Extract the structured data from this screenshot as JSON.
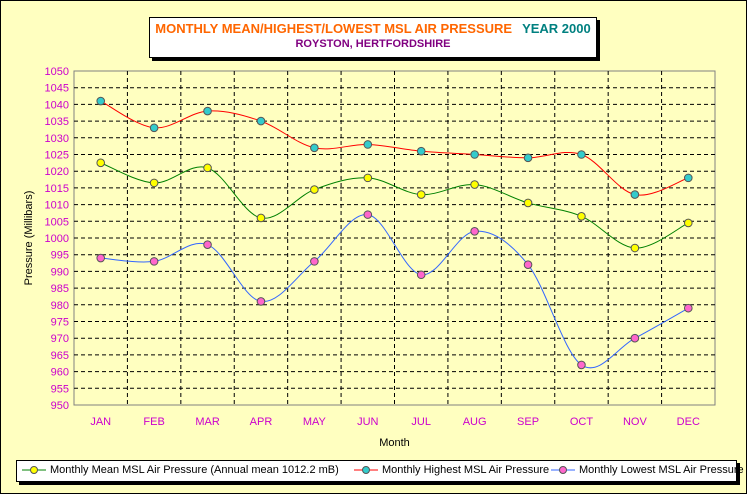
{
  "title": {
    "main": "MONTHLY MEAN/HIGHEST/LOWEST MSL AIR PRESSURE",
    "year": "YEAR 2000",
    "subtitle": "ROYSTON, HERTFORDSHIRE"
  },
  "colors": {
    "background": "#ffffc0",
    "title_main": "#ff6600",
    "title_year": "#008080",
    "subtitle": "#800080",
    "axis_labels": "#cc00cc",
    "mean_line": "#008000",
    "mean_marker": "#ffff00",
    "high_line": "#ff0000",
    "high_marker": "#33cccc",
    "low_line": "#3366ff",
    "low_marker": "#ff66cc"
  },
  "chart_data": {
    "type": "line",
    "xlabel": "Month",
    "ylabel": "Pressure (Millibars)",
    "ylim": [
      950,
      1050
    ],
    "ytick_step": 5,
    "grid": true,
    "legend_position": "bottom",
    "categories": [
      "JAN",
      "FEB",
      "MAR",
      "APR",
      "MAY",
      "JUN",
      "JUL",
      "AUG",
      "SEP",
      "OCT",
      "NOV",
      "DEC"
    ],
    "series": [
      {
        "name": "Monthly Mean MSL Air Pressure (Annual mean 1012.2 mB)",
        "values": [
          1022.5,
          1016.5,
          1021,
          1006,
          1014.5,
          1018,
          1013,
          1016,
          1010.5,
          1006.5,
          997,
          1004.5
        ]
      },
      {
        "name": "Monthly Highest MSL Air Pressure",
        "values": [
          1041,
          1033,
          1038,
          1035,
          1027,
          1028,
          1026,
          1025,
          1024,
          1025,
          1013,
          1018
        ]
      },
      {
        "name": "Monthly Lowest MSL Air Pressure",
        "values": [
          994,
          993,
          998,
          981,
          993,
          1007,
          989,
          1002,
          992,
          962,
          970,
          979
        ]
      }
    ]
  }
}
